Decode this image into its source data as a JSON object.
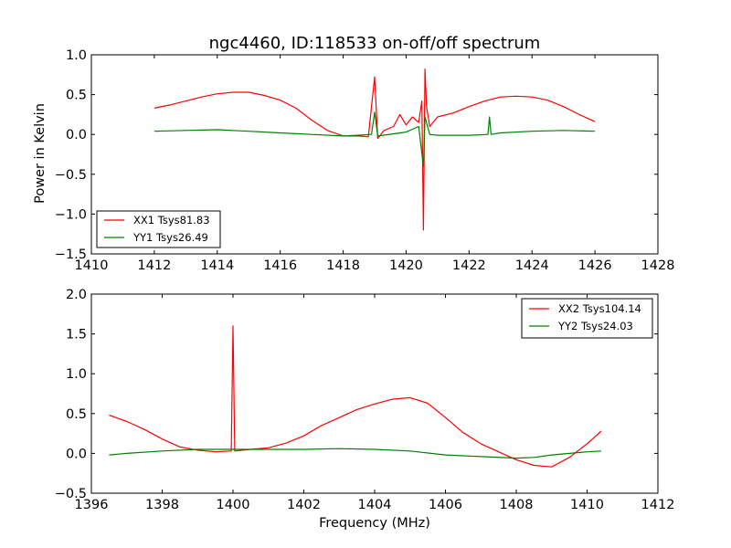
{
  "figure": {
    "title": "ngc4460, ID:118533 on-off/off spectrum",
    "ylabel": "Power in Kelvin",
    "xlabel": "Frequency (MHz)"
  },
  "chart_data": [
    {
      "type": "line",
      "xlim": [
        1410,
        1428
      ],
      "ylim": [
        -1.5,
        1.0
      ],
      "xticks": [
        "1410",
        "1412",
        "1414",
        "1416",
        "1418",
        "1420",
        "1422",
        "1424",
        "1426",
        "1428"
      ],
      "yticks": [
        "−1.5",
        "−1.0",
        "−0.5",
        "0.0",
        "0.5",
        "1.0"
      ],
      "legend_position": "bottom-left",
      "series": [
        {
          "name": "XX1 Tsys81.83",
          "color": "#ff0000",
          "x": [
            1412.0,
            1412.5,
            1413.0,
            1413.5,
            1414.0,
            1414.5,
            1415.0,
            1415.5,
            1416.0,
            1416.5,
            1417.0,
            1417.5,
            1418.0,
            1418.5,
            1418.8,
            1419.0,
            1419.1,
            1419.3,
            1419.6,
            1419.8,
            1420.0,
            1420.2,
            1420.4,
            1420.5,
            1420.55,
            1420.6,
            1420.65,
            1420.75,
            1421.0,
            1421.5,
            1422.0,
            1422.5,
            1423.0,
            1423.5,
            1424.0,
            1424.5,
            1425.0,
            1425.5,
            1426.0
          ],
          "y": [
            0.33,
            0.37,
            0.42,
            0.47,
            0.51,
            0.53,
            0.53,
            0.49,
            0.43,
            0.33,
            0.18,
            0.05,
            -0.02,
            -0.02,
            -0.03,
            0.72,
            -0.05,
            0.05,
            0.1,
            0.25,
            0.12,
            0.22,
            0.15,
            0.42,
            -1.2,
            0.82,
            0.35,
            0.1,
            0.22,
            0.27,
            0.35,
            0.42,
            0.47,
            0.48,
            0.47,
            0.43,
            0.35,
            0.25,
            0.16
          ]
        },
        {
          "name": "YY1 Tsys26.49",
          "color": "#008000",
          "x": [
            1412.0,
            1413.0,
            1414.0,
            1415.0,
            1416.0,
            1417.0,
            1418.0,
            1418.9,
            1419.0,
            1419.1,
            1420.0,
            1420.4,
            1420.55,
            1420.6,
            1420.75,
            1421.0,
            1422.0,
            1422.6,
            1422.65,
            1422.7,
            1423.0,
            1424.0,
            1425.0,
            1426.0
          ],
          "y": [
            0.04,
            0.05,
            0.06,
            0.04,
            0.02,
            0.0,
            -0.02,
            0.0,
            0.28,
            -0.02,
            0.03,
            0.1,
            -0.4,
            0.22,
            0.0,
            -0.01,
            -0.01,
            0.0,
            0.22,
            0.0,
            0.02,
            0.04,
            0.05,
            0.04
          ]
        }
      ]
    },
    {
      "type": "line",
      "xlim": [
        1396,
        1412
      ],
      "ylim": [
        -0.5,
        2.0
      ],
      "xticks": [
        "1396",
        "1398",
        "1400",
        "1402",
        "1404",
        "1406",
        "1408",
        "1410",
        "1412"
      ],
      "yticks": [
        "−0.5",
        "0.0",
        "0.5",
        "1.0",
        "1.5",
        "2.0"
      ],
      "legend_position": "top-right",
      "series": [
        {
          "name": "XX2 Tsys104.14",
          "color": "#ff0000",
          "x": [
            1396.5,
            1397.0,
            1397.5,
            1398.0,
            1398.5,
            1399.0,
            1399.5,
            1399.95,
            1400.0,
            1400.05,
            1400.5,
            1401.0,
            1401.5,
            1402.0,
            1402.5,
            1403.0,
            1403.5,
            1404.0,
            1404.5,
            1405.0,
            1405.5,
            1406.0,
            1406.5,
            1407.0,
            1407.5,
            1408.0,
            1408.5,
            1409.0,
            1409.5,
            1410.0,
            1410.4
          ],
          "y": [
            0.48,
            0.4,
            0.3,
            0.18,
            0.08,
            0.04,
            0.02,
            0.03,
            1.6,
            0.03,
            0.05,
            0.07,
            0.13,
            0.22,
            0.35,
            0.45,
            0.55,
            0.62,
            0.68,
            0.7,
            0.63,
            0.45,
            0.26,
            0.12,
            0.02,
            -0.08,
            -0.15,
            -0.17,
            -0.05,
            0.12,
            0.28
          ]
        },
        {
          "name": "YY2 Tsys24.03",
          "color": "#008000",
          "x": [
            1396.5,
            1397.0,
            1398.0,
            1399.0,
            1400.0,
            1401.0,
            1402.0,
            1403.0,
            1404.0,
            1405.0,
            1406.0,
            1407.0,
            1408.0,
            1408.5,
            1409.0,
            1410.0,
            1410.4
          ],
          "y": [
            -0.02,
            0.0,
            0.03,
            0.05,
            0.05,
            0.05,
            0.05,
            0.06,
            0.05,
            0.03,
            -0.02,
            -0.04,
            -0.06,
            -0.05,
            -0.02,
            0.02,
            0.03
          ]
        }
      ]
    }
  ]
}
